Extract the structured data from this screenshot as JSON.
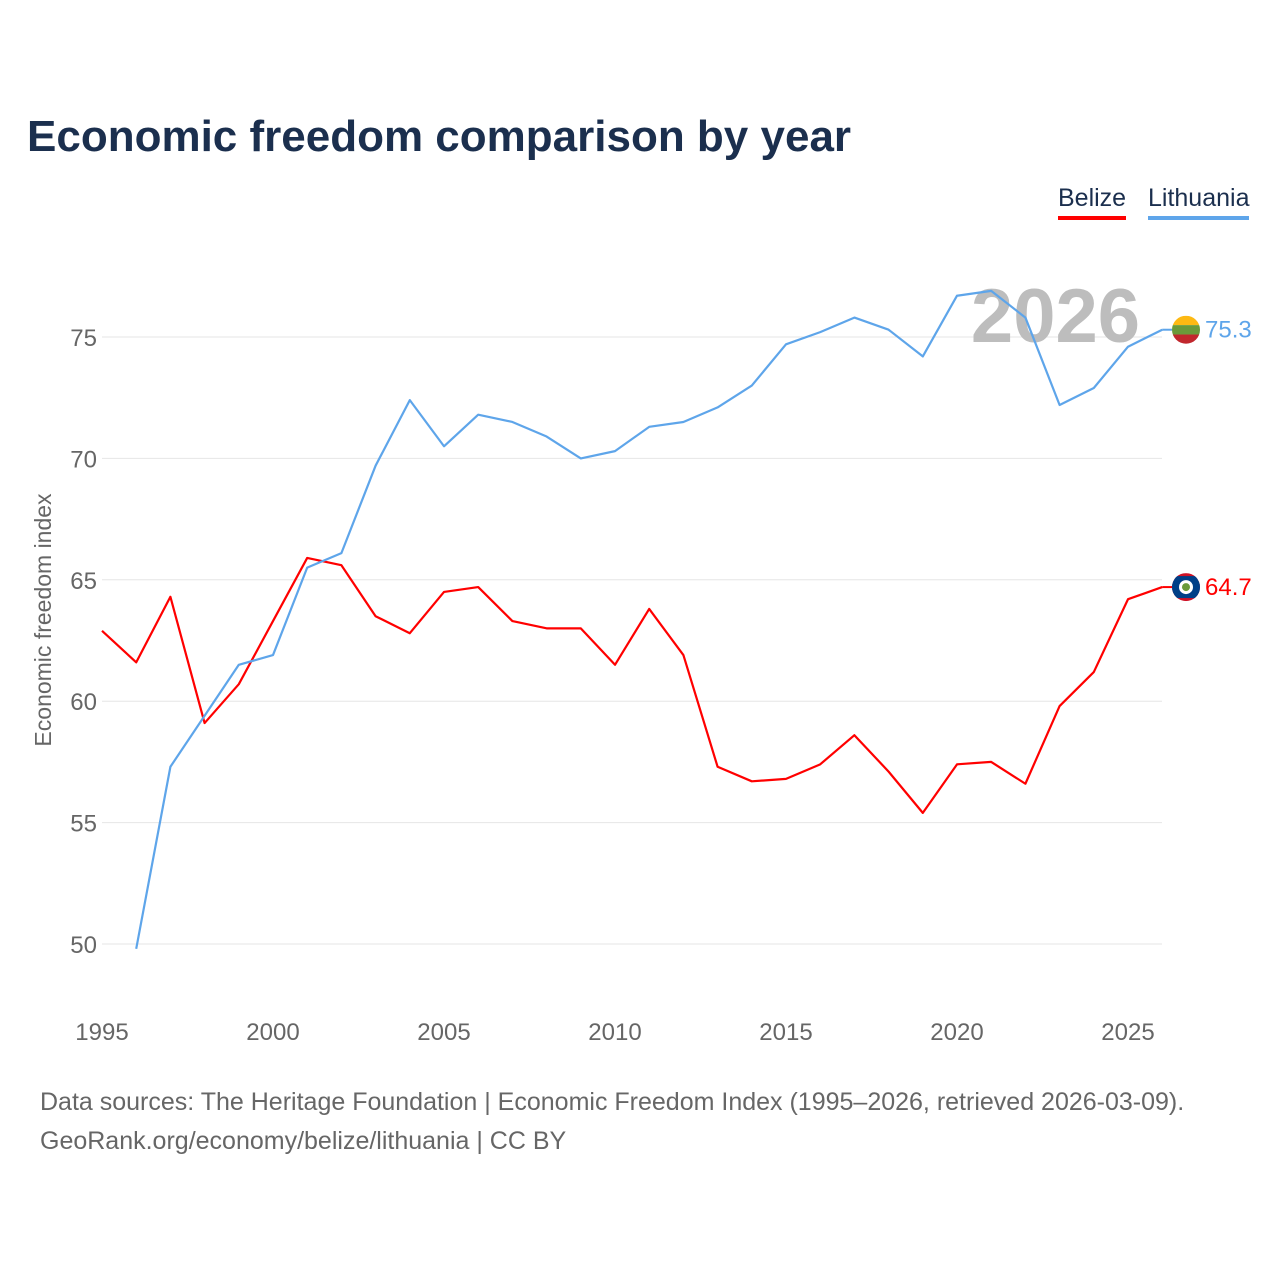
{
  "title": "Economic freedom comparison by year",
  "watermark_year": "2026",
  "footer": {
    "line1": "Data sources: The Heritage Foundation | Economic Freedom Index (1995–2026, retrieved 2026-03-09).",
    "line2": "GeoRank.org/economy/belize/lithuania | CC BY"
  },
  "chart_data": {
    "type": "line",
    "title": "Economic freedom comparison by year",
    "xlabel": "",
    "ylabel": "Economic freedom index",
    "xlim": [
      1995,
      2026
    ],
    "ylim": [
      47,
      79
    ],
    "xticks": [
      1995,
      2000,
      2005,
      2010,
      2015,
      2020,
      2025
    ],
    "yticks": [
      50,
      55,
      60,
      65,
      70,
      75
    ],
    "grid": true,
    "legend_position": "top-right",
    "series": [
      {
        "name": "Belize",
        "color": "#ff0000",
        "end_label": "64.7",
        "flag": "belize-flag",
        "x": [
          1995,
          1996,
          1997,
          1998,
          1999,
          2000,
          2001,
          2002,
          2003,
          2004,
          2005,
          2006,
          2007,
          2008,
          2009,
          2010,
          2011,
          2012,
          2013,
          2014,
          2015,
          2016,
          2017,
          2018,
          2019,
          2020,
          2021,
          2022,
          2023,
          2024,
          2025,
          2026
        ],
        "values": [
          62.9,
          61.6,
          64.3,
          59.1,
          60.7,
          63.3,
          65.9,
          65.6,
          63.5,
          62.8,
          64.5,
          64.7,
          63.3,
          63.0,
          63.0,
          61.5,
          63.8,
          61.9,
          57.3,
          56.7,
          56.8,
          57.4,
          58.6,
          57.1,
          55.4,
          57.4,
          57.5,
          56.6,
          59.8,
          61.2,
          64.2,
          64.7
        ]
      },
      {
        "name": "Lithuania",
        "color": "#5ea5ea",
        "end_label": "75.3",
        "flag": "lithuania-flag",
        "x": [
          1996,
          1997,
          1998,
          1999,
          2000,
          2001,
          2002,
          2003,
          2004,
          2005,
          2006,
          2007,
          2008,
          2009,
          2010,
          2011,
          2012,
          2013,
          2014,
          2015,
          2016,
          2017,
          2018,
          2019,
          2020,
          2021,
          2022,
          2023,
          2024,
          2025,
          2026
        ],
        "values": [
          49.8,
          57.3,
          59.4,
          61.5,
          61.9,
          65.5,
          66.1,
          69.7,
          72.4,
          70.5,
          71.8,
          71.5,
          70.9,
          70.0,
          70.3,
          71.3,
          71.5,
          72.1,
          73.0,
          74.7,
          75.2,
          75.8,
          75.3,
          74.2,
          76.7,
          76.9,
          75.8,
          72.2,
          72.9,
          74.6,
          75.3
        ]
      }
    ]
  }
}
